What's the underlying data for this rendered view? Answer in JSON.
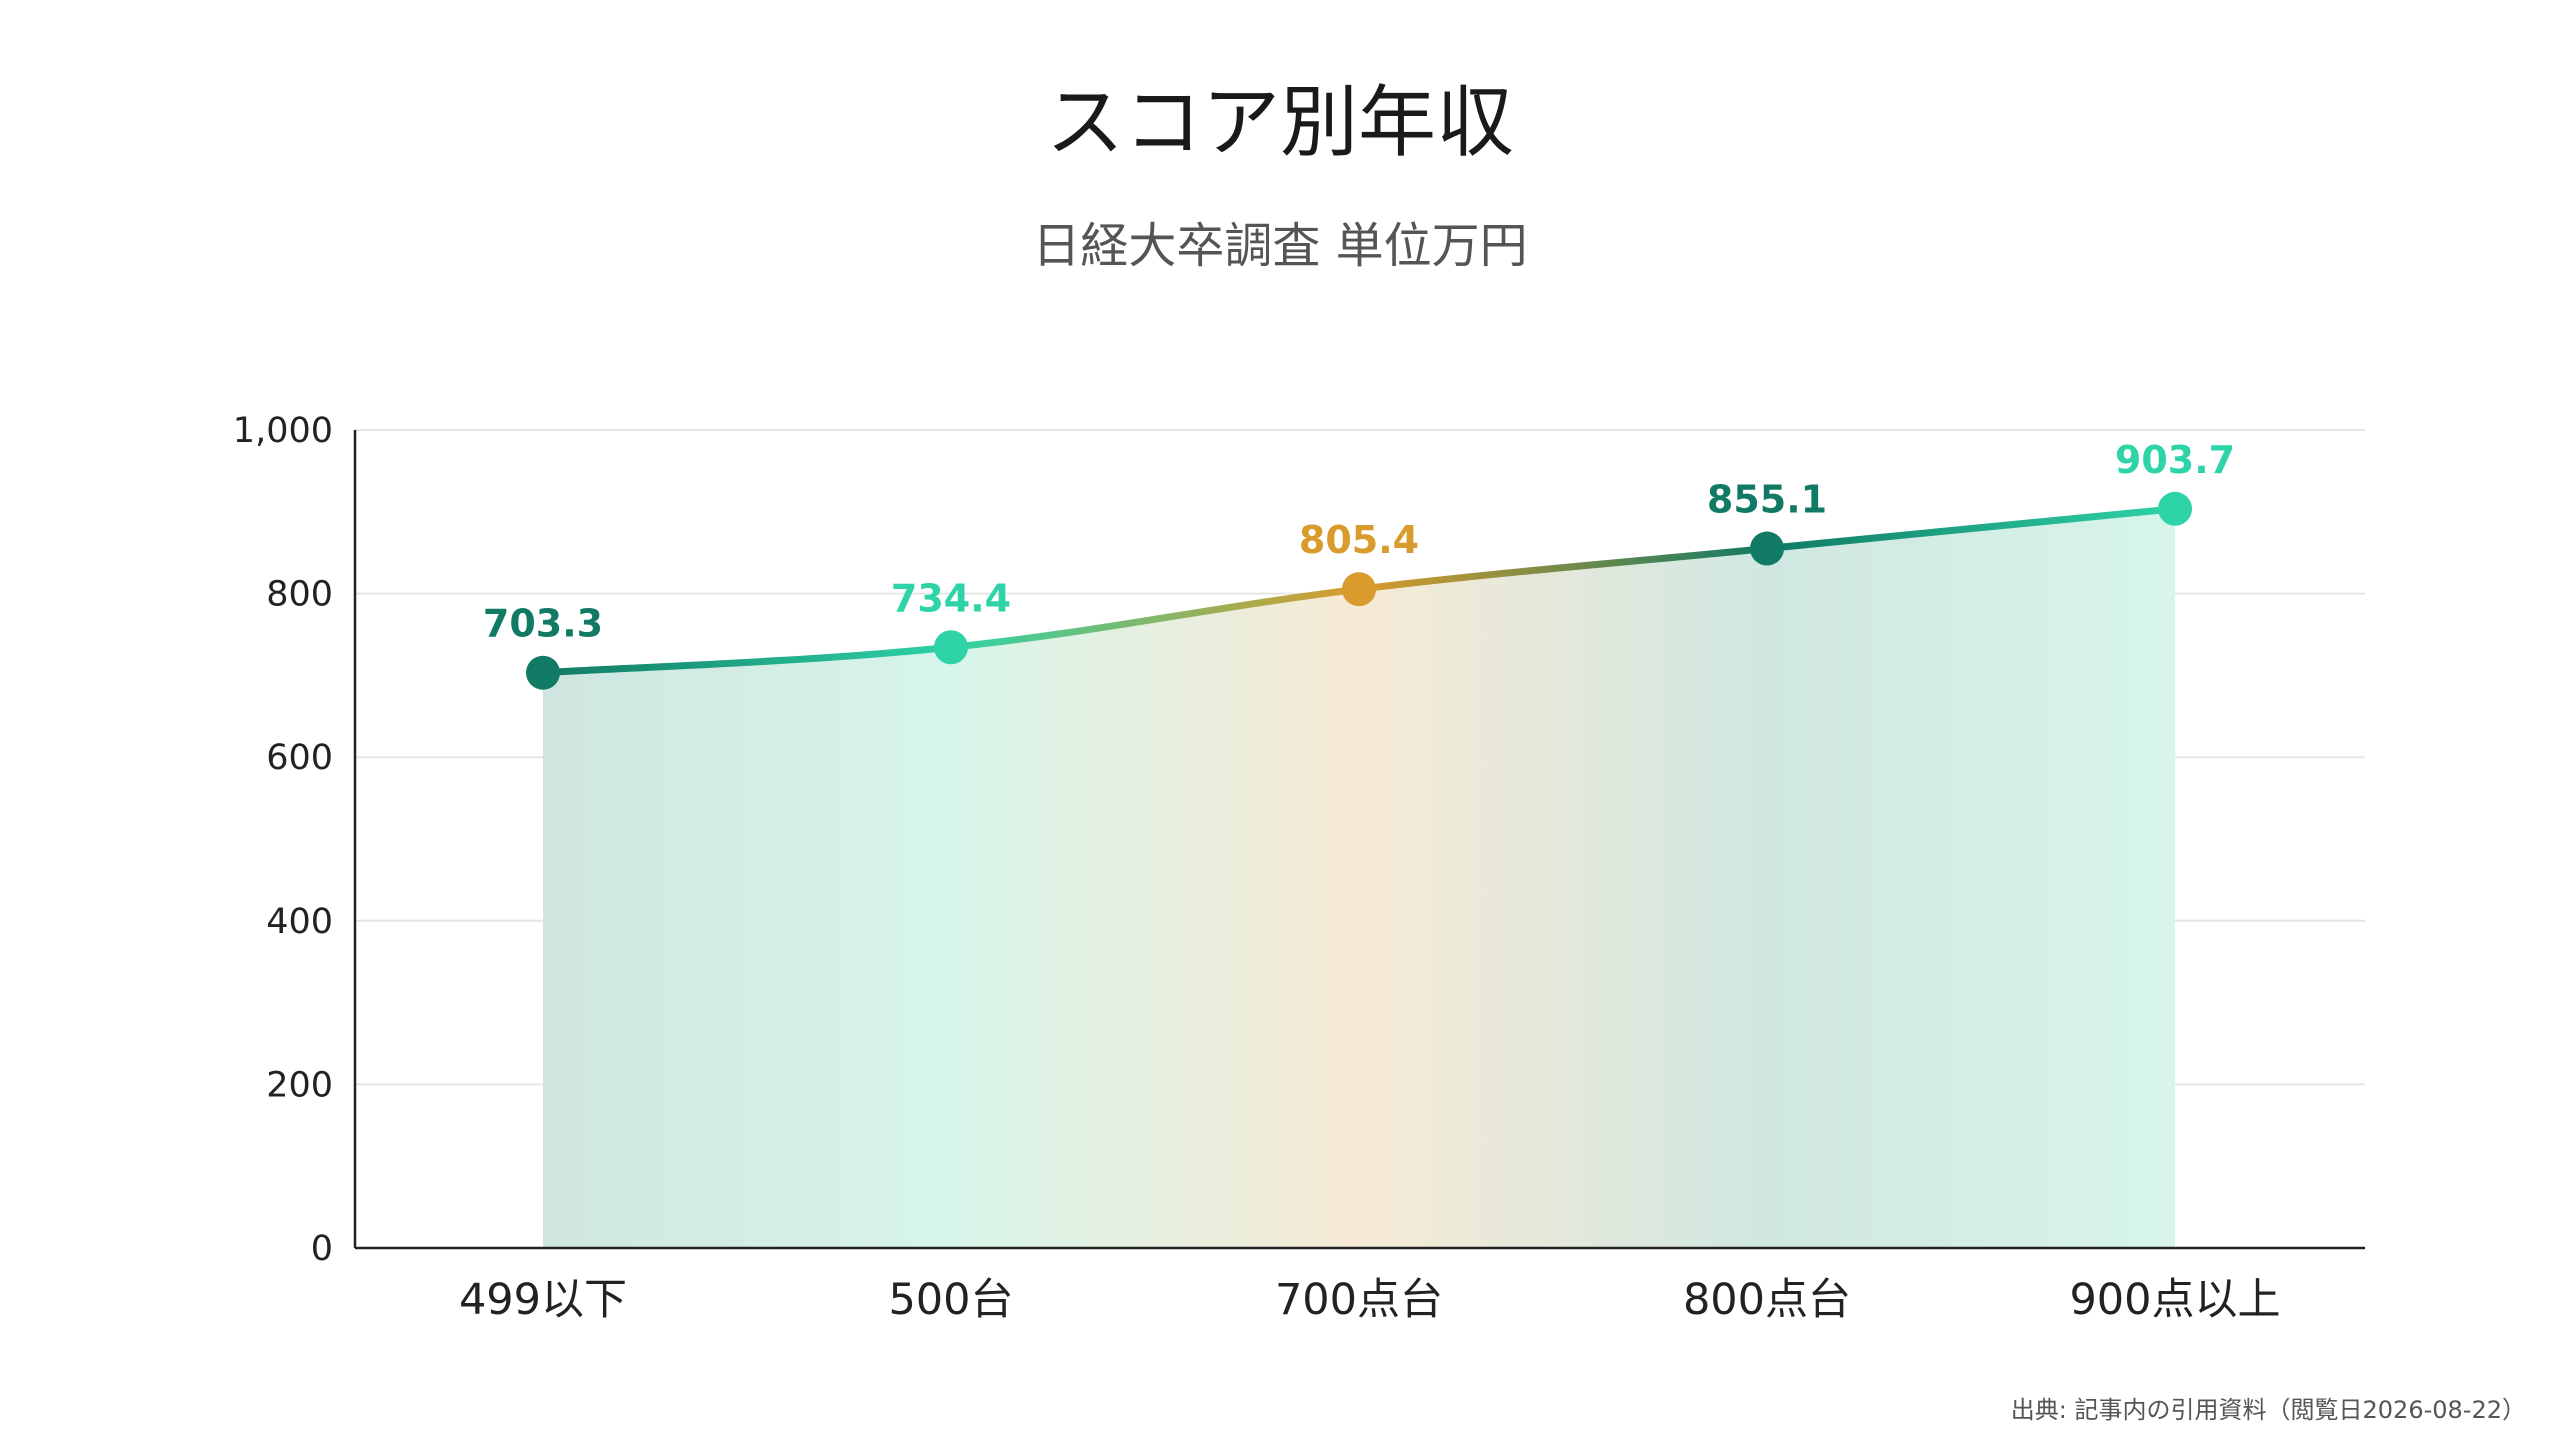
{
  "chart_data": {
    "type": "area",
    "title": "スコア別年収",
    "subtitle": "日経大卒調査 単位万円",
    "categories": [
      "499以下",
      "500台",
      "700点台",
      "800点台",
      "900点以上"
    ],
    "series": [
      {
        "values": [
          703.3,
          734.4,
          805.4,
          855.1,
          903.7
        ]
      }
    ],
    "data_labels": [
      "703.3",
      "734.4",
      "805.4",
      "855.1",
      "903.7"
    ],
    "point_colors": [
      "#117a65",
      "#2ed3a7",
      "#d99b2b",
      "#117a65",
      "#2ed3a7"
    ],
    "fill_colors": [
      "#cfe6e0",
      "#d7f5ea",
      "#f6ead5",
      "#d0e7e1",
      "#d7f5ea"
    ],
    "ylim": [
      0,
      1000
    ],
    "yticks": [
      0,
      200,
      400,
      600,
      800,
      1000
    ],
    "ytick_labels": [
      "0",
      "200",
      "400",
      "600",
      "800",
      "1,000"
    ],
    "grid": true,
    "xlabel": "",
    "ylabel": ""
  },
  "source": "出典: 記事内の引用資料（閲覧日2026-08-22）"
}
